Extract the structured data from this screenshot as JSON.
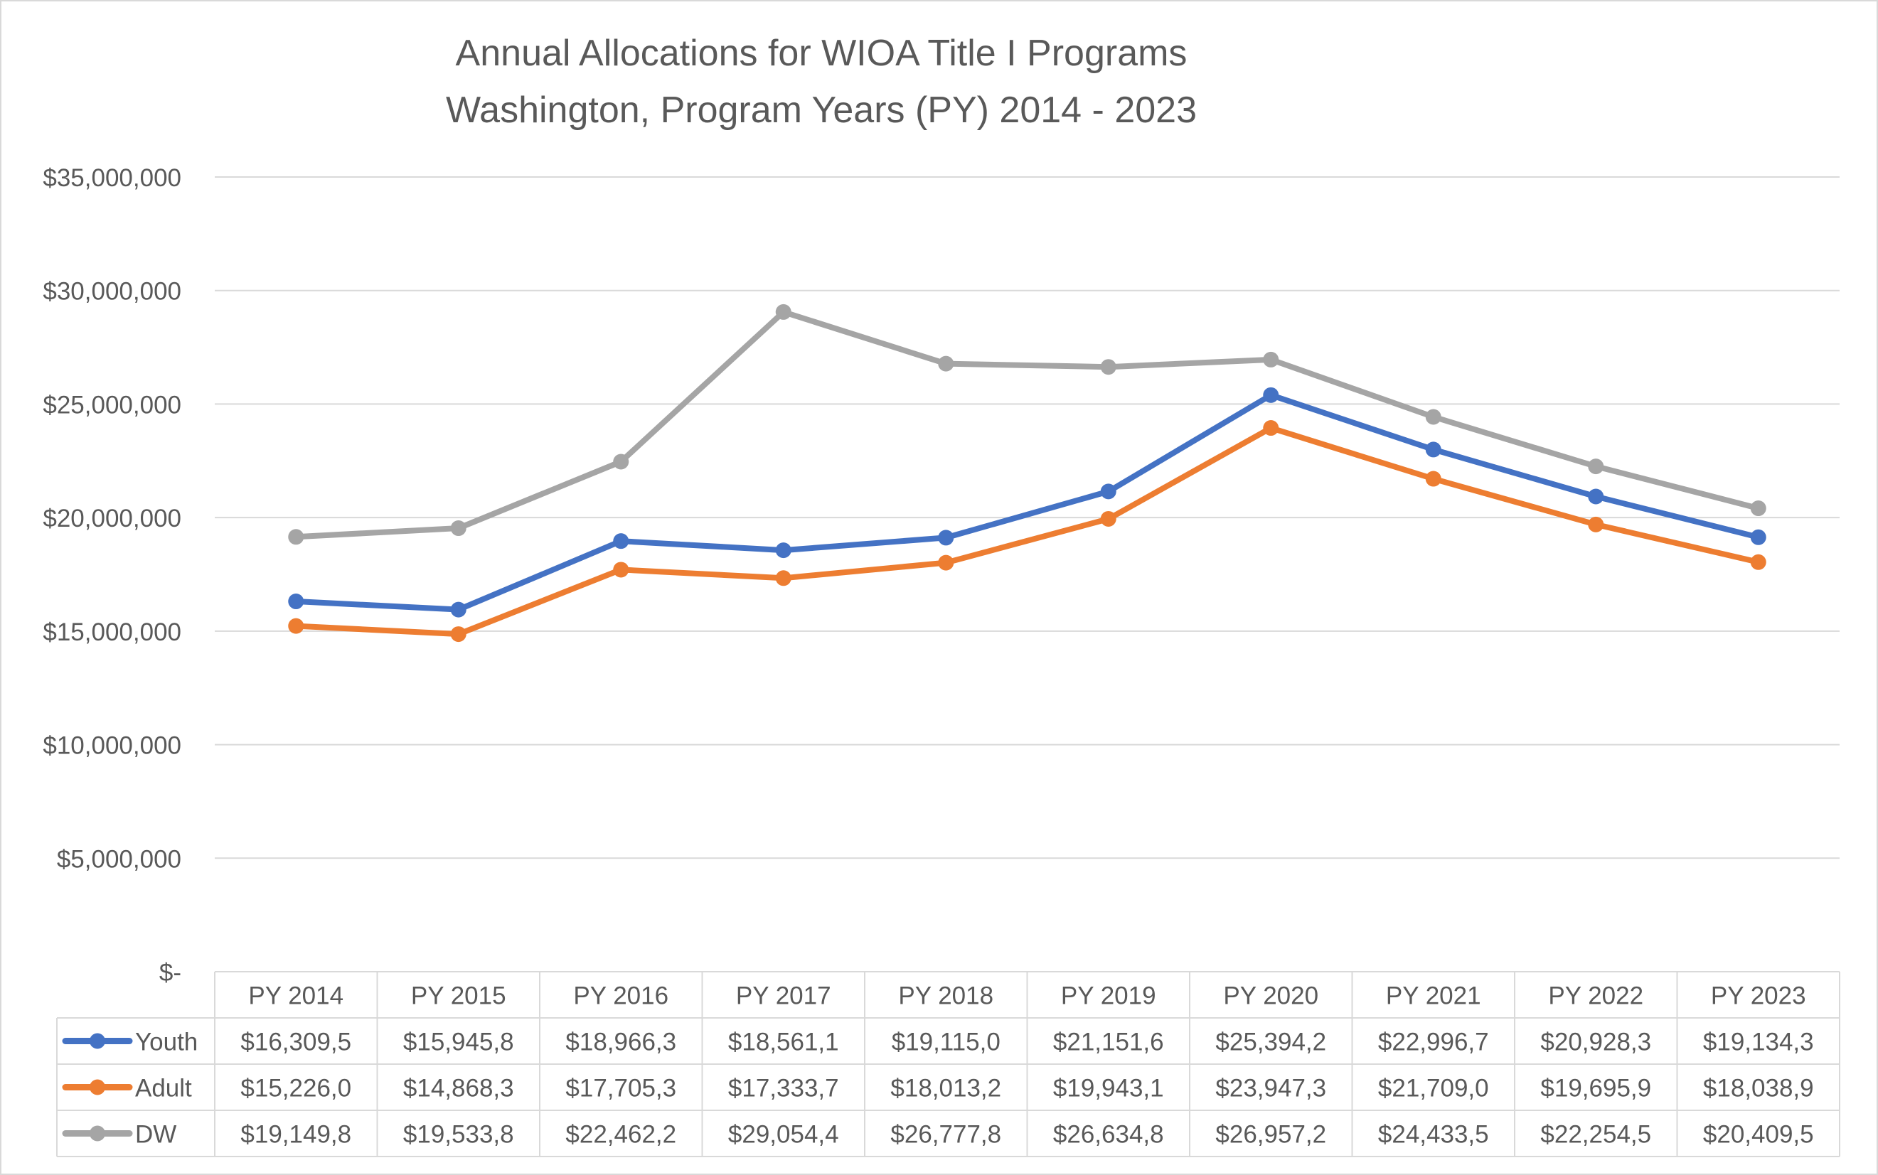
{
  "chart_data": {
    "type": "line",
    "title_lines": [
      "Annual Allocations for WIOA Title I Programs",
      "Washington, Program Years (PY) 2014 - 2023"
    ],
    "categories": [
      "PY 2014",
      "PY 2015",
      "PY 2016",
      "PY 2017",
      "PY 2018",
      "PY 2019",
      "PY 2020",
      "PY 2021",
      "PY 2022",
      "PY 2023"
    ],
    "y_ticks": [
      "$-",
      "$5,000,000",
      "$10,000,000",
      "$15,000,000",
      "$20,000,000",
      "$25,000,000",
      "$30,000,000",
      "$35,000,000"
    ],
    "ylim": [
      0,
      35000000
    ],
    "y_step": 5000000,
    "grid": true,
    "legend": "data-table",
    "series": [
      {
        "name": "Youth",
        "color": "#4472C4",
        "values": [
          16309500,
          15945800,
          18966300,
          18561100,
          19115000,
          21151600,
          25394200,
          22996700,
          20928300,
          19134300
        ],
        "table_labels": [
          "$16,309,5",
          "$15,945,8",
          "$18,966,3",
          "$18,561,1",
          "$19,115,0",
          "$21,151,6",
          "$25,394,2",
          "$22,996,7",
          "$20,928,3",
          "$19,134,3"
        ]
      },
      {
        "name": "Adult",
        "color": "#ED7D31",
        "values": [
          15226000,
          14868300,
          17705300,
          17333700,
          18013200,
          19943100,
          23947300,
          21709000,
          19695900,
          18038900
        ],
        "table_labels": [
          "$15,226,0",
          "$14,868,3",
          "$17,705,3",
          "$17,333,7",
          "$18,013,2",
          "$19,943,1",
          "$23,947,3",
          "$21,709,0",
          "$19,695,9",
          "$18,038,9"
        ]
      },
      {
        "name": "DW",
        "color": "#A5A5A5",
        "values": [
          19149800,
          19533800,
          22462200,
          29054400,
          26777800,
          26634800,
          26957200,
          24433500,
          22254500,
          20409500
        ],
        "table_labels": [
          "$19,149,8",
          "$19,533,8",
          "$22,462,2",
          "$29,054,4",
          "$26,777,8",
          "$26,634,8",
          "$26,957,2",
          "$24,433,5",
          "$22,254,5",
          "$20,409,5"
        ]
      }
    ]
  }
}
